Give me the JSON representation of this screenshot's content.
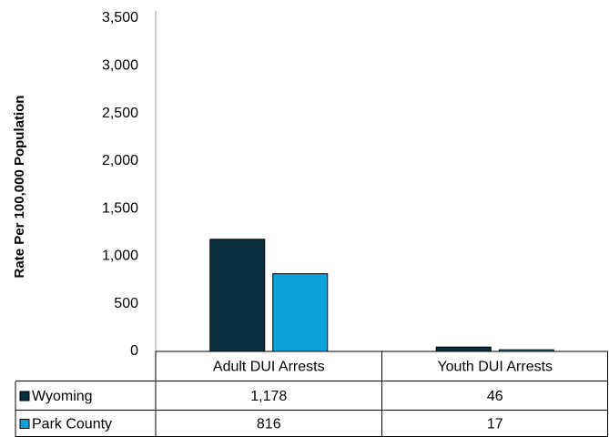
{
  "chart_data": {
    "type": "bar",
    "y_label": "Rate Per 100,000 Population",
    "categories": [
      "Adult DUI Arrests",
      "Youth DUI Arrests"
    ],
    "series": [
      {
        "name": "Wyoming",
        "color": "#0a2e3d",
        "values": [
          1178,
          46
        ],
        "value_labels": [
          "1,178",
          "46"
        ]
      },
      {
        "name": "Park County",
        "color": "#0aa3d8",
        "values": [
          816,
          17
        ],
        "value_labels": [
          "816",
          "17"
        ]
      }
    ],
    "ylim": [
      0,
      3500
    ],
    "yticks": [
      0,
      500,
      {
        "value": 1000,
        "label": "1,000"
      },
      {
        "value": 1500,
        "label": "1,500"
      },
      {
        "value": 2000,
        "label": "2,000"
      },
      {
        "value": 2500,
        "label": "2,500"
      },
      {
        "value": 3000,
        "label": "3,000"
      },
      {
        "value": 3500,
        "label": "3,500"
      }
    ],
    "grid": false
  }
}
